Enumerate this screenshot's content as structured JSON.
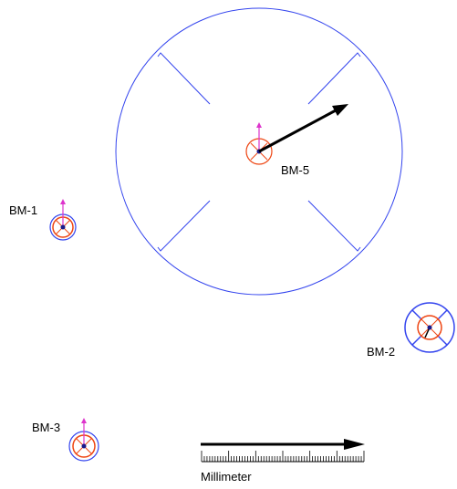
{
  "colors": {
    "outline": "#3344ee",
    "sensor": "#ee4411",
    "stem": "#dd33cc",
    "vector": "#000000"
  },
  "markers": [
    {
      "id": "bm-5",
      "label": "BM-5",
      "size": "large-ring",
      "vector_deg": -28
    },
    {
      "id": "bm-1",
      "label": "BM-1",
      "size": "small"
    },
    {
      "id": "bm-2",
      "label": "BM-2",
      "size": "medium"
    },
    {
      "id": "bm-3",
      "label": "BM-3",
      "size": "small"
    }
  ],
  "scale_bar": {
    "unit_label": "Millimeter",
    "major_ticks": 6,
    "minor_per_major": 9
  }
}
